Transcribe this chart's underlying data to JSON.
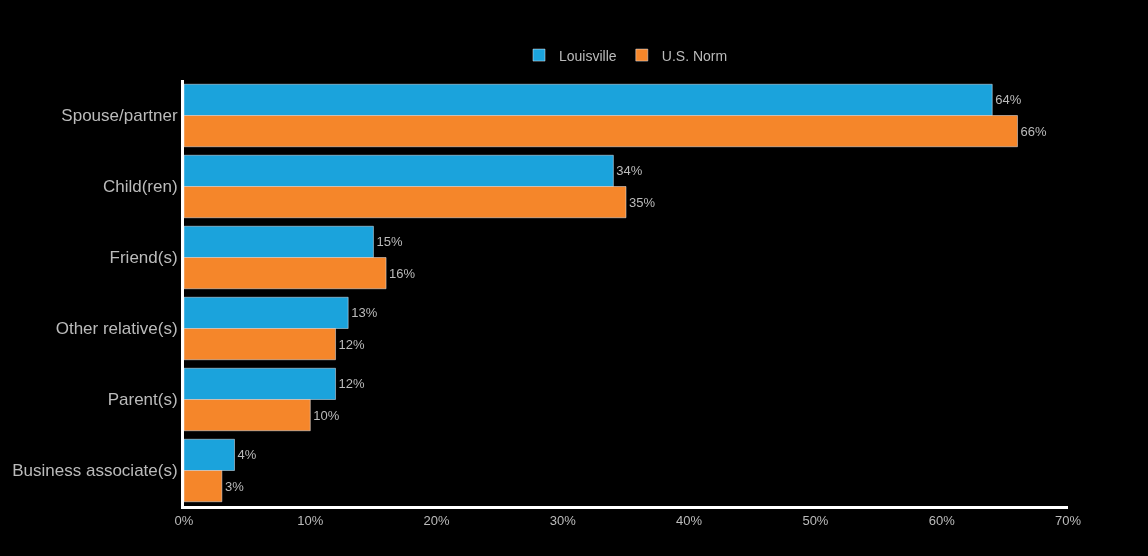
{
  "chart_data": {
    "type": "bar",
    "orientation": "horizontal",
    "categories": [
      "Spouse/partner",
      "Child(ren)",
      "Friend(s)",
      "Other relative(s)",
      "Parent(s)",
      "Business associate(s)"
    ],
    "series": [
      {
        "name": "Louisville",
        "color": "#1ba3dc",
        "values": [
          64,
          34,
          15,
          13,
          12,
          4
        ],
        "value_labels": [
          "64%",
          "34%",
          "15%",
          "13%",
          "12%",
          "4%"
        ]
      },
      {
        "name": "U.S. Norm",
        "color": "#f5862a",
        "values": [
          66,
          35,
          16,
          12,
          10,
          3
        ],
        "value_labels": [
          "66%",
          "35%",
          "16%",
          "12%",
          "10%",
          "3%"
        ]
      }
    ],
    "xlim": [
      0,
      70
    ],
    "xticks": [
      {
        "value": 0,
        "label": "0%"
      },
      {
        "value": 10,
        "label": "10%"
      },
      {
        "value": 20,
        "label": "20%"
      },
      {
        "value": 30,
        "label": "30%"
      },
      {
        "value": 40,
        "label": "40%"
      },
      {
        "value": 50,
        "label": "50%"
      },
      {
        "value": 60,
        "label": "60%"
      },
      {
        "value": 70,
        "label": "70%"
      }
    ],
    "grid": false,
    "legend": "top"
  }
}
